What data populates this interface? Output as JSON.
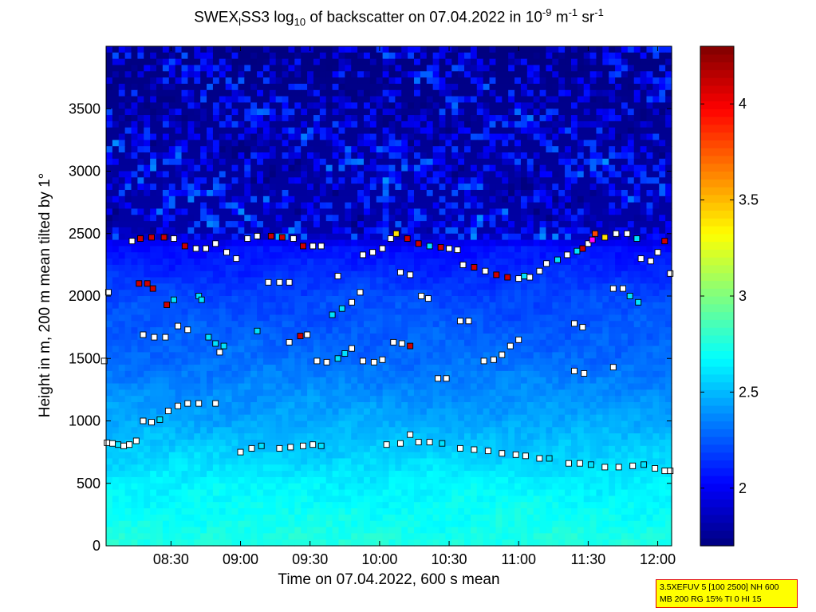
{
  "chart_data": {
    "type": "heatmap",
    "title": {
      "part1": "SWEX",
      "sub1": "l",
      "part2": "SS3 log",
      "sub2": "10",
      "part3": " of backscatter on 07.04.2022 in 10",
      "sup1": "-9",
      "part4": " m",
      "sup2": "-1",
      "part5": " sr",
      "sup3": "-1"
    },
    "xlabel": "Time on 07.04.2022, 600 s mean",
    "ylabel": "Height in m, 200 m mean tilted by 1°",
    "x_time_range_hours": [
      8.0333,
      12.1
    ],
    "x_ticks": [
      "08:30",
      "09:00",
      "09:30",
      "10:00",
      "10:30",
      "11:00",
      "11:30",
      "12:00"
    ],
    "x_tick_hours": [
      8.5,
      9.0,
      9.5,
      10.0,
      10.5,
      11.0,
      11.5,
      12.0
    ],
    "ylim": [
      0,
      4000
    ],
    "y_ticks": [
      0,
      500,
      1000,
      1500,
      2000,
      2500,
      3000,
      3500
    ],
    "colorbar": {
      "range": [
        1.7,
        4.3
      ],
      "ticks": [
        "2",
        "2.5",
        "3",
        "3.5",
        "4"
      ],
      "tick_values": [
        2,
        2.5,
        3,
        3.5,
        4
      ],
      "colormap": "jet"
    },
    "background_levels": {
      "description_free": true,
      "profile": [
        {
          "height": 0,
          "value": 2.75
        },
        {
          "height": 500,
          "value": 2.65
        },
        {
          "height": 1000,
          "value": 2.45
        },
        {
          "height": 1500,
          "value": 2.3
        },
        {
          "height": 2000,
          "value": 2.2
        },
        {
          "height": 2400,
          "value": 2.05
        },
        {
          "height": 2500,
          "value": 1.8
        },
        {
          "height": 4000,
          "value": 1.7
        }
      ]
    },
    "markers": [
      {
        "t": 8.04,
        "h": 825,
        "v": 2.0
      },
      {
        "t": 8.08,
        "h": 820,
        "v": 2.0
      },
      {
        "t": 8.12,
        "h": 810,
        "v": 2.6
      },
      {
        "t": 8.16,
        "h": 800,
        "v": 2.0
      },
      {
        "t": 8.2,
        "h": 810,
        "v": 2.0
      },
      {
        "t": 8.25,
        "h": 840,
        "v": 2.0
      },
      {
        "t": 8.3,
        "h": 1000,
        "v": 2.0
      },
      {
        "t": 8.36,
        "h": 990,
        "v": 2.0
      },
      {
        "t": 8.42,
        "h": 1010,
        "v": 2.6
      },
      {
        "t": 8.48,
        "h": 1080,
        "v": 2.0
      },
      {
        "t": 8.55,
        "h": 1120,
        "v": 2.0
      },
      {
        "t": 8.62,
        "h": 1140,
        "v": 2.0
      },
      {
        "t": 8.7,
        "h": 1140,
        "v": 2.0
      },
      {
        "t": 8.82,
        "h": 1140,
        "v": 2.0
      },
      {
        "t": 8.3,
        "h": 1690,
        "v": 2.0
      },
      {
        "t": 8.38,
        "h": 1670,
        "v": 2.0
      },
      {
        "t": 8.46,
        "h": 1670,
        "v": 2.0
      },
      {
        "t": 8.27,
        "h": 2100,
        "v": 4.1
      },
      {
        "t": 8.33,
        "h": 2100,
        "v": 4.1
      },
      {
        "t": 8.37,
        "h": 2060,
        "v": 4.1
      },
      {
        "t": 8.47,
        "h": 1930,
        "v": 4.1
      },
      {
        "t": 8.52,
        "h": 1970,
        "v": 2.6
      },
      {
        "t": 8.22,
        "h": 2440,
        "v": 2.0
      },
      {
        "t": 8.28,
        "h": 2460,
        "v": 4.1
      },
      {
        "t": 8.36,
        "h": 2470,
        "v": 4.1
      },
      {
        "t": 8.45,
        "h": 2470,
        "v": 4.1
      },
      {
        "t": 8.52,
        "h": 2460,
        "v": 2.0
      },
      {
        "t": 8.6,
        "h": 2400,
        "v": 4.1
      },
      {
        "t": 8.68,
        "h": 2380,
        "v": 2.0
      },
      {
        "t": 8.75,
        "h": 2380,
        "v": 2.0
      },
      {
        "t": 8.82,
        "h": 2420,
        "v": 2.0
      },
      {
        "t": 8.9,
        "h": 2350,
        "v": 2.0
      },
      {
        "t": 8.97,
        "h": 2300,
        "v": 2.0
      },
      {
        "t": 8.55,
        "h": 1760,
        "v": 2.0
      },
      {
        "t": 8.62,
        "h": 1730,
        "v": 2.0
      },
      {
        "t": 8.77,
        "h": 1670,
        "v": 2.6
      },
      {
        "t": 8.82,
        "h": 1620,
        "v": 2.6
      },
      {
        "t": 8.88,
        "h": 1600,
        "v": 2.6
      },
      {
        "t": 8.85,
        "h": 1550,
        "v": 2.0
      },
      {
        "t": 8.7,
        "h": 2000,
        "v": 2.6
      },
      {
        "t": 8.72,
        "h": 1970,
        "v": 2.6
      },
      {
        "t": 9.05,
        "h": 2460,
        "v": 2.0
      },
      {
        "t": 9.12,
        "h": 2480,
        "v": 2.0
      },
      {
        "t": 9.22,
        "h": 2480,
        "v": 4.1
      },
      {
        "t": 9.3,
        "h": 2470,
        "v": 4.1
      },
      {
        "t": 9.38,
        "h": 2460,
        "v": 2.0
      },
      {
        "t": 9.45,
        "h": 2400,
        "v": 4.1
      },
      {
        "t": 9.52,
        "h": 2400,
        "v": 2.0
      },
      {
        "t": 9.58,
        "h": 2400,
        "v": 2.0
      },
      {
        "t": 9.0,
        "h": 750,
        "v": 2.0
      },
      {
        "t": 9.08,
        "h": 780,
        "v": 2.0
      },
      {
        "t": 9.15,
        "h": 800,
        "v": 2.6
      },
      {
        "t": 9.28,
        "h": 780,
        "v": 2.0
      },
      {
        "t": 9.36,
        "h": 790,
        "v": 2.0
      },
      {
        "t": 9.45,
        "h": 800,
        "v": 2.0
      },
      {
        "t": 9.52,
        "h": 810,
        "v": 2.0
      },
      {
        "t": 9.58,
        "h": 800,
        "v": 2.6
      },
      {
        "t": 9.2,
        "h": 2110,
        "v": 2.0
      },
      {
        "t": 9.28,
        "h": 2110,
        "v": 2.0
      },
      {
        "t": 9.35,
        "h": 2110,
        "v": 2.0
      },
      {
        "t": 9.12,
        "h": 1720,
        "v": 2.6
      },
      {
        "t": 9.35,
        "h": 1630,
        "v": 2.0
      },
      {
        "t": 9.43,
        "h": 1680,
        "v": 4.1
      },
      {
        "t": 9.48,
        "h": 1690,
        "v": 2.0
      },
      {
        "t": 9.55,
        "h": 1480,
        "v": 2.0
      },
      {
        "t": 9.62,
        "h": 1470,
        "v": 2.0
      },
      {
        "t": 9.7,
        "h": 1500,
        "v": 2.6
      },
      {
        "t": 9.75,
        "h": 1540,
        "v": 2.6
      },
      {
        "t": 9.8,
        "h": 1580,
        "v": 2.0
      },
      {
        "t": 9.88,
        "h": 1480,
        "v": 2.0
      },
      {
        "t": 9.96,
        "h": 1470,
        "v": 2.0
      },
      {
        "t": 10.02,
        "h": 1490,
        "v": 2.0
      },
      {
        "t": 9.66,
        "h": 1850,
        "v": 2.6
      },
      {
        "t": 9.73,
        "h": 1900,
        "v": 2.6
      },
      {
        "t": 9.8,
        "h": 1950,
        "v": 2.0
      },
      {
        "t": 9.86,
        "h": 2030,
        "v": 2.0
      },
      {
        "t": 9.7,
        "h": 2160,
        "v": 2.0
      },
      {
        "t": 9.88,
        "h": 2330,
        "v": 2.0
      },
      {
        "t": 9.95,
        "h": 2350,
        "v": 2.0
      },
      {
        "t": 10.02,
        "h": 2380,
        "v": 2.0
      },
      {
        "t": 10.08,
        "h": 2460,
        "v": 2.0
      },
      {
        "t": 10.12,
        "h": 2500,
        "v": 3.4
      },
      {
        "t": 10.2,
        "h": 2460,
        "v": 4.1
      },
      {
        "t": 10.28,
        "h": 2420,
        "v": 4.1
      },
      {
        "t": 10.36,
        "h": 2400,
        "v": 2.6
      },
      {
        "t": 10.44,
        "h": 2390,
        "v": 4.1
      },
      {
        "t": 10.5,
        "h": 2380,
        "v": 2.0
      },
      {
        "t": 10.56,
        "h": 2370,
        "v": 2.0
      },
      {
        "t": 10.15,
        "h": 2190,
        "v": 2.0
      },
      {
        "t": 10.22,
        "h": 2170,
        "v": 2.0
      },
      {
        "t": 10.1,
        "h": 1630,
        "v": 2.0
      },
      {
        "t": 10.16,
        "h": 1620,
        "v": 2.0
      },
      {
        "t": 10.22,
        "h": 1600,
        "v": 4.1
      },
      {
        "t": 10.05,
        "h": 810,
        "v": 2.0
      },
      {
        "t": 10.15,
        "h": 820,
        "v": 2.0
      },
      {
        "t": 10.22,
        "h": 890,
        "v": 2.0
      },
      {
        "t": 10.28,
        "h": 830,
        "v": 2.0
      },
      {
        "t": 10.36,
        "h": 830,
        "v": 2.0
      },
      {
        "t": 10.45,
        "h": 820,
        "v": 2.6
      },
      {
        "t": 10.3,
        "h": 2000,
        "v": 2.0
      },
      {
        "t": 10.35,
        "h": 1980,
        "v": 2.0
      },
      {
        "t": 10.42,
        "h": 1340,
        "v": 2.0
      },
      {
        "t": 10.48,
        "h": 1340,
        "v": 2.0
      },
      {
        "t": 10.58,
        "h": 1800,
        "v": 2.0
      },
      {
        "t": 10.64,
        "h": 1800,
        "v": 2.0
      },
      {
        "t": 10.58,
        "h": 780,
        "v": 2.0
      },
      {
        "t": 10.68,
        "h": 770,
        "v": 2.0
      },
      {
        "t": 10.78,
        "h": 760,
        "v": 2.0
      },
      {
        "t": 10.88,
        "h": 740,
        "v": 2.0
      },
      {
        "t": 10.98,
        "h": 730,
        "v": 2.0
      },
      {
        "t": 11.05,
        "h": 720,
        "v": 2.0
      },
      {
        "t": 11.15,
        "h": 700,
        "v": 2.0
      },
      {
        "t": 11.22,
        "h": 700,
        "v": 2.6
      },
      {
        "t": 10.6,
        "h": 2250,
        "v": 2.0
      },
      {
        "t": 10.68,
        "h": 2230,
        "v": 4.1
      },
      {
        "t": 10.76,
        "h": 2200,
        "v": 2.0
      },
      {
        "t": 10.84,
        "h": 2170,
        "v": 4.1
      },
      {
        "t": 10.92,
        "h": 2150,
        "v": 4.1
      },
      {
        "t": 11.0,
        "h": 2140,
        "v": 2.0
      },
      {
        "t": 11.08,
        "h": 2150,
        "v": 2.0
      },
      {
        "t": 11.15,
        "h": 2200,
        "v": 2.0
      },
      {
        "t": 10.75,
        "h": 1480,
        "v": 2.0
      },
      {
        "t": 10.82,
        "h": 1490,
        "v": 2.0
      },
      {
        "t": 10.88,
        "h": 1530,
        "v": 2.0
      },
      {
        "t": 10.94,
        "h": 1600,
        "v": 2.0
      },
      {
        "t": 11.0,
        "h": 1650,
        "v": 2.0
      },
      {
        "t": 11.04,
        "h": 2160,
        "v": 2.6
      },
      {
        "t": 11.2,
        "h": 2260,
        "v": 2.0
      },
      {
        "t": 11.28,
        "h": 2290,
        "v": 2.6
      },
      {
        "t": 11.35,
        "h": 2330,
        "v": 2.0
      },
      {
        "t": 11.42,
        "h": 2360,
        "v": 2.6
      },
      {
        "t": 11.5,
        "h": 2420,
        "v": 2.0
      },
      {
        "t": 11.55,
        "h": 2500,
        "v": 3.8
      },
      {
        "t": 11.62,
        "h": 2470,
        "v": 3.4
      },
      {
        "t": 11.7,
        "h": 2500,
        "v": 2.0
      },
      {
        "t": 11.78,
        "h": 2500,
        "v": 2.0
      },
      {
        "t": 11.85,
        "h": 2460,
        "v": 2.6
      },
      {
        "t": 11.88,
        "h": 2300,
        "v": 2.0
      },
      {
        "t": 11.95,
        "h": 2280,
        "v": 2.0
      },
      {
        "t": 12.0,
        "h": 2350,
        "v": 2.0
      },
      {
        "t": 12.05,
        "h": 2440,
        "v": 4.1
      },
      {
        "t": 12.09,
        "h": 2180,
        "v": 2.0
      },
      {
        "t": 11.46,
        "h": 2380,
        "v": 4.1
      },
      {
        "t": 11.53,
        "h": 2450,
        "v": 4.5
      },
      {
        "t": 11.4,
        "h": 1780,
        "v": 2.0
      },
      {
        "t": 11.46,
        "h": 1750,
        "v": 2.0
      },
      {
        "t": 11.4,
        "h": 1400,
        "v": 2.0
      },
      {
        "t": 11.47,
        "h": 1380,
        "v": 2.0
      },
      {
        "t": 11.68,
        "h": 1430,
        "v": 2.0
      },
      {
        "t": 11.68,
        "h": 2060,
        "v": 2.0
      },
      {
        "t": 11.75,
        "h": 2060,
        "v": 2.0
      },
      {
        "t": 11.8,
        "h": 2000,
        "v": 2.6
      },
      {
        "t": 11.86,
        "h": 1950,
        "v": 2.6
      },
      {
        "t": 11.36,
        "h": 660,
        "v": 2.0
      },
      {
        "t": 11.44,
        "h": 660,
        "v": 2.0
      },
      {
        "t": 11.52,
        "h": 650,
        "v": 2.6
      },
      {
        "t": 11.62,
        "h": 630,
        "v": 2.0
      },
      {
        "t": 11.72,
        "h": 630,
        "v": 2.0
      },
      {
        "t": 11.82,
        "h": 640,
        "v": 2.0
      },
      {
        "t": 11.9,
        "h": 650,
        "v": 2.6
      },
      {
        "t": 11.98,
        "h": 620,
        "v": 2.0
      },
      {
        "t": 12.05,
        "h": 600,
        "v": 2.0
      },
      {
        "t": 12.09,
        "h": 600,
        "v": 2.0
      },
      {
        "t": 8.05,
        "h": 2030,
        "v": 2.0
      },
      {
        "t": 8.02,
        "h": 1480,
        "v": 2.0
      }
    ]
  },
  "info_box": {
    "line1": "3.5XEFUV 5 [100 2500] NH 600",
    "line2": "MB 200 RG 15% TI 0 HI 15"
  }
}
